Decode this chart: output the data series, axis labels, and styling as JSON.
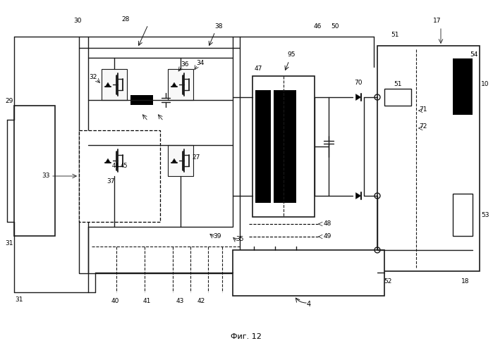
{
  "title": "Фиг. 12",
  "bg_color": "#ffffff",
  "line_color": "#1a1a1a",
  "figsize": [
    6.99,
    4.87
  ],
  "dpi": 100
}
